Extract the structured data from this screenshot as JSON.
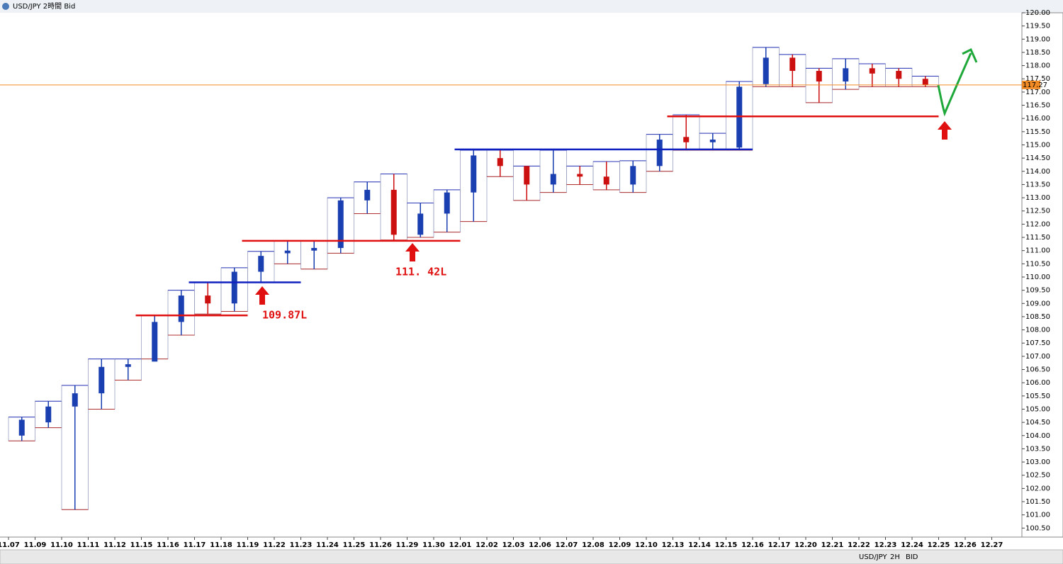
{
  "chart_data": {
    "type": "candlestick",
    "title": "USD/JPY 2時間 Bid",
    "toolbar": [
      "USD/JPY",
      "2H",
      "BID"
    ],
    "annotations": [
      "109.87L",
      "111. 42L"
    ],
    "categories": [
      "11.07",
      "11.09",
      "11.10",
      "11.11",
      "11.12",
      "11.15",
      "11.16",
      "11.17",
      "11.18",
      "11.19",
      "11.22",
      "11.23",
      "11.24",
      "11.25",
      "11.26",
      "11.29",
      "11.30",
      "12.01",
      "12.02",
      "12.03",
      "12.06",
      "12.07",
      "12.08",
      "12.09",
      "12.10",
      "12.13",
      "12.14",
      "12.15",
      "12.16",
      "12.17",
      "12.20",
      "12.21",
      "12.22",
      "12.23",
      "12.24",
      "12.25",
      "12.26",
      "12.27"
    ],
    "open": [
      104.0,
      104.5,
      105.1,
      105.6,
      106.6,
      106.8,
      108.3,
      109.3,
      109.0,
      110.2,
      110.9,
      111.0,
      111.1,
      112.9,
      113.3,
      111.6,
      112.4,
      113.2,
      114.5,
      114.2,
      113.5,
      113.9,
      113.8,
      113.5,
      114.2,
      115.3,
      115.1,
      114.9,
      117.3,
      118.3,
      117.8,
      117.4,
      117.9,
      117.8,
      117.5,
      null,
      null,
      null
    ],
    "high": [
      104.7,
      105.3,
      105.9,
      106.9,
      106.9,
      108.55,
      109.5,
      109.8,
      110.35,
      110.97,
      111.37,
      111.37,
      113.0,
      113.6,
      113.9,
      112.8,
      113.3,
      114.8,
      114.8,
      114.2,
      114.8,
      114.2,
      114.37,
      114.4,
      115.4,
      116.14,
      115.44,
      117.4,
      118.69,
      118.42,
      117.9,
      118.26,
      118.07,
      117.9,
      117.6,
      null,
      null,
      null
    ],
    "low": [
      103.8,
      104.3,
      101.2,
      105.0,
      106.1,
      106.9,
      107.8,
      108.6,
      108.7,
      109.8,
      110.5,
      110.3,
      110.9,
      112.4,
      111.4,
      111.5,
      111.7,
      112.1,
      113.8,
      112.9,
      113.2,
      113.5,
      113.3,
      113.2,
      114.0,
      114.8,
      114.8,
      114.8,
      117.2,
      117.2,
      116.6,
      117.1,
      117.2,
      117.2,
      117.2,
      null,
      null,
      null
    ],
    "close": [
      104.6,
      105.1,
      105.6,
      106.6,
      106.7,
      108.3,
      109.3,
      109.0,
      110.2,
      110.8,
      111.0,
      111.1,
      112.9,
      113.3,
      111.6,
      112.4,
      113.2,
      114.6,
      114.2,
      113.5,
      113.9,
      113.8,
      113.5,
      114.2,
      115.2,
      115.1,
      115.2,
      117.2,
      118.3,
      117.8,
      117.4,
      117.9,
      117.7,
      117.5,
      117.27,
      null,
      null,
      null
    ],
    "up_color": "#1a3fb0",
    "down_color": "#cc1010",
    "box_high_color": "#2a36b8",
    "box_low_color": "#b03030",
    "current_price": 117.27,
    "current_color": "#f08a24",
    "levels": [
      {
        "price": 108.55,
        "color": "#e01010",
        "from": "11.15",
        "to": "11.18"
      },
      {
        "price": 109.8,
        "color": "#1020c0",
        "from": "11.17",
        "to": "11.22"
      },
      {
        "price": 111.37,
        "color": "#e01010",
        "from": "11.19",
        "to": "11.30"
      },
      {
        "price": 114.83,
        "color": "#1020c0",
        "from": "12.01",
        "to": "12.15"
      },
      {
        "price": 116.08,
        "color": "#e01010",
        "from": "12.13",
        "to": "12.24"
      }
    ],
    "ylim": [
      100.16,
      120.0
    ],
    "yticks": [
      {
        "value": 100.5,
        "label": "100.50"
      },
      {
        "value": 101,
        "label": "101.00"
      },
      {
        "value": 101.5,
        "label": "101.50"
      },
      {
        "value": 102,
        "label": "102.00"
      },
      {
        "value": 102.5,
        "label": "102.50"
      },
      {
        "value": 103,
        "label": "103.00"
      },
      {
        "value": 103.5,
        "label": "103.50"
      },
      {
        "value": 104,
        "label": "104.00"
      },
      {
        "value": 104.5,
        "label": "104.50"
      },
      {
        "value": 105,
        "label": "105.00"
      },
      {
        "value": 105.5,
        "label": "105.50"
      },
      {
        "value": 106,
        "label": "106.00"
      },
      {
        "value": 106.5,
        "label": "106.50"
      },
      {
        "value": 107,
        "label": "107.00"
      },
      {
        "value": 107.5,
        "label": "107.50"
      },
      {
        "value": 108,
        "label": "108.00"
      },
      {
        "value": 108.5,
        "label": "108.50"
      },
      {
        "value": 109,
        "label": "109.00"
      },
      {
        "value": 109.5,
        "label": "109.50"
      },
      {
        "value": 110,
        "label": "110.00"
      },
      {
        "value": 110.5,
        "label": "110.50"
      },
      {
        "value": 111,
        "label": "111.00"
      },
      {
        "value": 111.5,
        "label": "111.50"
      },
      {
        "value": 112,
        "label": "112.00"
      },
      {
        "value": 112.5,
        "label": "112.50"
      },
      {
        "value": 113,
        "label": "113.00"
      },
      {
        "value": 113.5,
        "label": "113.50"
      },
      {
        "value": 114,
        "label": "114.00"
      },
      {
        "value": 114.5,
        "label": "114.50"
      },
      {
        "value": 115,
        "label": "115.00"
      },
      {
        "value": 115.5,
        "label": "115.50"
      },
      {
        "value": 116,
        "label": "116.00"
      },
      {
        "value": 116.5,
        "label": "116.50"
      },
      {
        "value": 117,
        "label": "117.00"
      },
      {
        "value": 117.5,
        "label": "117.50"
      },
      {
        "value": 118,
        "label": "118.00"
      },
      {
        "value": 118.5,
        "label": "118.50"
      },
      {
        "value": 119,
        "label": "119.00"
      },
      {
        "value": 119.5,
        "label": "119.50"
      },
      {
        "value": 120,
        "label": "120.00"
      }
    ]
  }
}
